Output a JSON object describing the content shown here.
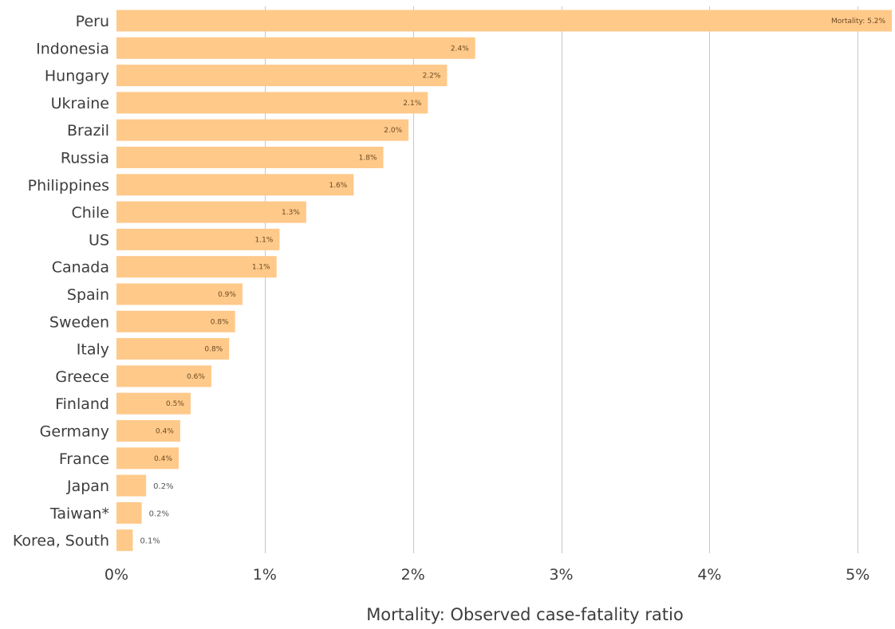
{
  "chart_data": {
    "type": "bar",
    "orientation": "horizontal",
    "categories": [
      "Peru",
      "Indonesia",
      "Hungary",
      "Ukraine",
      "Brazil",
      "Russia",
      "Philippines",
      "Chile",
      "US",
      "Canada",
      "Spain",
      "Sweden",
      "Italy",
      "Greece",
      "Finland",
      "Germany",
      "France",
      "Japan",
      "Taiwan*",
      "Korea, South"
    ],
    "values": [
      5.23,
      2.42,
      2.23,
      2.1,
      1.97,
      1.8,
      1.6,
      1.28,
      1.1,
      1.08,
      0.85,
      0.8,
      0.76,
      0.64,
      0.5,
      0.43,
      0.42,
      0.2,
      0.17,
      0.11
    ],
    "value_labels": [
      "Mortality: 5.2%",
      "2.4%",
      "2.2%",
      "2.1%",
      "2.0%",
      "1.8%",
      "1.6%",
      "1.3%",
      "1.1%",
      "1.1%",
      "0.9%",
      "0.8%",
      "0.8%",
      "0.6%",
      "0.5%",
      "0.4%",
      "0.4%",
      "0.2%",
      "0.2%",
      "0.1%"
    ],
    "xlim": [
      0,
      5.23
    ],
    "x_ticks": [
      0,
      1,
      2,
      3,
      4,
      5
    ],
    "x_tick_labels": [
      "0%",
      "1%",
      "2%",
      "3%",
      "4%",
      "5%"
    ],
    "xlabel": "Mortality: Observed case-fatality ratio",
    "ylabel": "",
    "title": "",
    "grid": "vertical",
    "bar_color": "#ffc98a"
  }
}
